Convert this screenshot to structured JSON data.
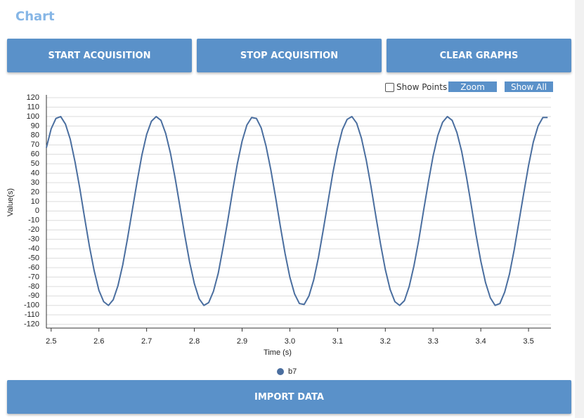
{
  "ui": {
    "title": "Chart",
    "buttons": [
      "START ACQUISITION",
      "STOP ACQUISITION",
      "CLEAR GRAPHS"
    ],
    "show_points": "Show Points",
    "zoom": "Zoom",
    "show_all": "Show All",
    "import": "IMPORT DATA"
  },
  "chart_data": {
    "type": "line",
    "x_label": "Time (s)",
    "y_label": "Value(s)",
    "xlim": [
      2.49,
      3.547
    ],
    "ylim": [
      -124,
      123
    ],
    "xticks": [
      2.5,
      2.6,
      2.7,
      2.8,
      2.9,
      {
        "value": 3,
        "label": "3.0"
      },
      3.1,
      3.2,
      3.3,
      3.4,
      3.5
    ],
    "yticks": [
      -120,
      -110,
      -100,
      -90,
      -80,
      -70,
      -60,
      -50,
      -40,
      -30,
      -20,
      -10,
      0,
      10,
      20,
      30,
      40,
      50,
      60,
      70,
      80,
      90,
      100,
      110,
      120
    ],
    "grid": true,
    "x": [
      2.49,
      2.5,
      2.51,
      2.52,
      2.53,
      2.54,
      2.55,
      2.56,
      2.57,
      2.58,
      2.59,
      2.6,
      2.61,
      2.62,
      2.63,
      2.64,
      2.65,
      2.66,
      2.67,
      2.68,
      2.69,
      2.7,
      2.71,
      2.72,
      2.73,
      2.74,
      2.75,
      2.76,
      2.77,
      2.78,
      2.79,
      2.8,
      2.81,
      2.82,
      2.83,
      2.84,
      2.85,
      2.86,
      2.87,
      2.88,
      2.89,
      2.9,
      2.91,
      2.92,
      2.93,
      2.94,
      2.95,
      2.96,
      2.97,
      2.98,
      2.99,
      3.0,
      3.01,
      3.02,
      3.03,
      3.04,
      3.05,
      3.06,
      3.07,
      3.08,
      3.09,
      3.1,
      3.11,
      3.12,
      3.13,
      3.14,
      3.15,
      3.16,
      3.17,
      3.18,
      3.19,
      3.2,
      3.21,
      3.22,
      3.23,
      3.24,
      3.25,
      3.26,
      3.27,
      3.28,
      3.29,
      3.3,
      3.31,
      3.32,
      3.33,
      3.34,
      3.35,
      3.36,
      3.37,
      3.38,
      3.39,
      3.4,
      3.41,
      3.42,
      3.43,
      3.44,
      3.45,
      3.46,
      3.47,
      3.48,
      3.49,
      3.5,
      3.51,
      3.52,
      3.53,
      3.54
    ],
    "series": [
      {
        "name": "b7",
        "color": "#4a6e9f",
        "values": [
          67,
          87,
          98,
          100,
          92,
          76,
          52,
          24,
          -7,
          -37,
          -63,
          -84,
          -96,
          -100,
          -94,
          -79,
          -57,
          -29,
          1,
          31,
          59,
          81,
          95,
          100,
          96,
          82,
          61,
          34,
          4,
          -26,
          -54,
          -77,
          -93,
          -100,
          -97,
          -85,
          -66,
          -39,
          -10,
          21,
          50,
          74,
          91,
          99,
          98,
          88,
          69,
          44,
          15,
          -16,
          -45,
          -70,
          -88,
          -98,
          -99,
          -90,
          -73,
          -49,
          -20,
          10,
          40,
          66,
          86,
          97,
          100,
          93,
          77,
          54,
          26,
          -5,
          -35,
          -62,
          -83,
          -96,
          -100,
          -95,
          -80,
          -58,
          -31,
          0,
          30,
          58,
          80,
          94,
          100,
          96,
          83,
          63,
          36,
          6,
          -25,
          -53,
          -76,
          -92,
          -100,
          -98,
          -86,
          -67,
          -41,
          -11,
          19,
          48,
          73,
          90,
          99,
          99
        ]
      }
    ]
  }
}
